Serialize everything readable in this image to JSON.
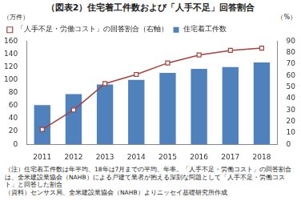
{
  "chart_data": {
    "type": "bar",
    "title": "（図表2）住宅着工件数および「人手不足」回答割合",
    "y_label": "（万件）",
    "y2_label": "（%）",
    "categories": [
      "2011",
      "2012",
      "2013",
      "2014",
      "2015",
      "2016",
      "2017",
      "2018"
    ],
    "series": [
      {
        "name": "住宅着工件数",
        "type": "bar",
        "color": "#4f81bd",
        "values": [
          61,
          78,
          93,
          100,
          111,
          117,
          120,
          127
        ]
      },
      {
        "name": "「人手不足・労働コスト」の回答割合（右軸）",
        "type": "line",
        "axis": "y2",
        "color": "#a5403a",
        "marker": "square",
        "values": [
          13,
          30,
          53,
          61,
          71,
          78,
          82,
          84
        ]
      }
    ],
    "ylim": [
      0,
      160
    ],
    "yticks": [
      0,
      20,
      40,
      60,
      80,
      100,
      120,
      140,
      160
    ],
    "y2lim": [
      0,
      90
    ],
    "y2ticks": [
      0,
      10,
      20,
      30,
      40,
      50,
      60,
      70,
      80,
      90
    ],
    "grid": false,
    "legend": "upper left",
    "notes": [
      "（注）住宅着工件数は年平均、18年は7月までの平均、年率。「人手不足・労働コスト」の回答割合は、全米建設業協会（NAHB）による戸建て業者が抱える深刻な問題として「人手不足・労働コスト」と回答した割合",
      "（資料）センサス局、全米建設業協会（NAHB）よりニッセイ基礎研究所作成"
    ]
  }
}
